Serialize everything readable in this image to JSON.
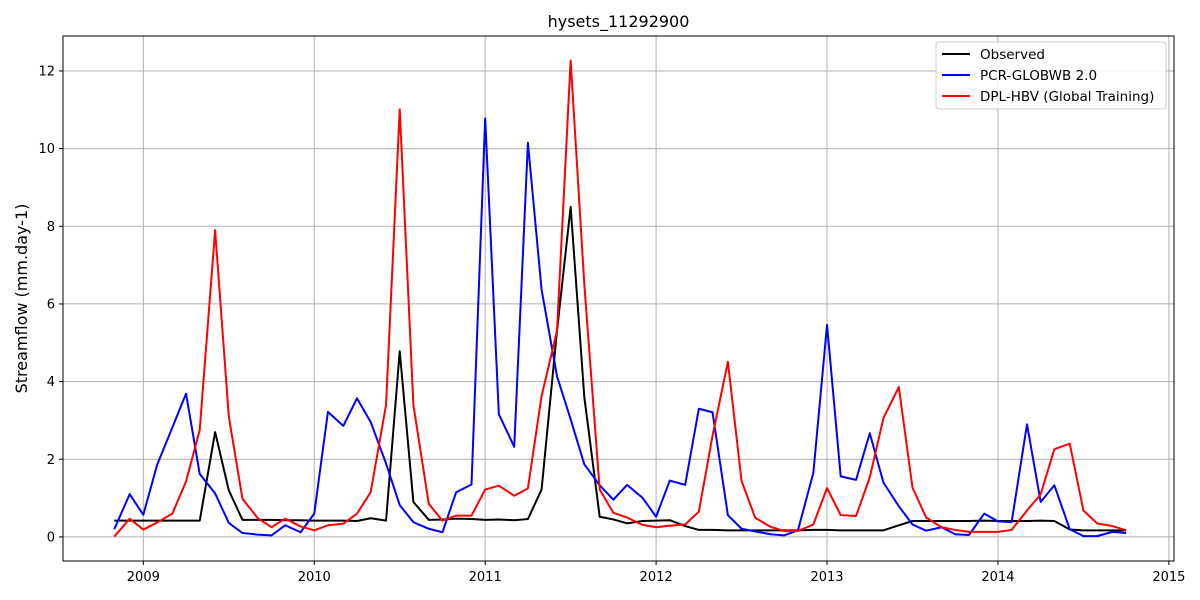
{
  "chart_data": {
    "type": "line",
    "title": "hysets_11292900",
    "xlabel": "",
    "ylabel": "Streamflow (mm.day-1)",
    "xlim": [
      2008.53,
      2015.03
    ],
    "ylim": [
      -0.62,
      12.9
    ],
    "xticks": [
      2009,
      2010,
      2011,
      2012,
      2013,
      2014,
      2015
    ],
    "yticks": [
      0,
      2,
      4,
      6,
      8,
      10,
      12
    ],
    "grid": true,
    "legend_position": "top-right",
    "x": [
      2008.83,
      2008.92,
      2009.0,
      2009.08,
      2009.17,
      2009.25,
      2009.33,
      2009.42,
      2009.5,
      2009.58,
      2009.67,
      2009.75,
      2009.83,
      2009.92,
      2010.0,
      2010.08,
      2010.17,
      2010.25,
      2010.33,
      2010.42,
      2010.5,
      2010.58,
      2010.67,
      2010.75,
      2010.83,
      2010.92,
      2011.0,
      2011.08,
      2011.17,
      2011.25,
      2011.33,
      2011.42,
      2011.5,
      2011.58,
      2011.67,
      2011.75,
      2011.83,
      2011.92,
      2012.0,
      2012.08,
      2012.17,
      2012.25,
      2012.33,
      2012.42,
      2012.5,
      2012.58,
      2012.67,
      2012.75,
      2012.83,
      2012.92,
      2013.0,
      2013.08,
      2013.17,
      2013.25,
      2013.33,
      2013.42,
      2013.5,
      2013.58,
      2013.67,
      2013.75,
      2013.83,
      2013.92,
      2014.0,
      2014.08,
      2014.17,
      2014.25,
      2014.33,
      2014.42,
      2014.5,
      2014.58,
      2014.67,
      2014.75
    ],
    "series": [
      {
        "name": "Observed",
        "color": "#000000",
        "values": [
          0.42,
          0.42,
          0.42,
          0.42,
          0.42,
          0.42,
          0.42,
          2.7,
          1.2,
          0.44,
          0.44,
          0.44,
          0.43,
          0.43,
          0.42,
          0.42,
          0.42,
          0.41,
          0.48,
          0.42,
          4.78,
          0.9,
          0.44,
          0.45,
          0.47,
          0.46,
          0.44,
          0.45,
          0.43,
          0.46,
          1.22,
          5.3,
          8.5,
          3.6,
          0.52,
          0.45,
          0.35,
          0.41,
          0.42,
          0.43,
          0.28,
          0.18,
          0.18,
          0.17,
          0.17,
          0.17,
          0.17,
          0.17,
          0.17,
          0.18,
          0.18,
          0.17,
          0.17,
          0.17,
          0.17,
          0.3,
          0.41,
          0.41,
          0.41,
          0.41,
          0.41,
          0.42,
          0.41,
          0.41,
          0.41,
          0.42,
          0.41,
          0.19,
          0.17,
          0.17,
          0.17,
          0.17
        ]
      },
      {
        "name": "PCR-GLOBWB 2.0",
        "color": "#0000ff",
        "values": [
          0.2,
          1.1,
          0.57,
          1.85,
          2.82,
          3.69,
          1.62,
          1.12,
          0.36,
          0.1,
          0.06,
          0.04,
          0.3,
          0.12,
          0.6,
          3.22,
          2.86,
          3.57,
          2.96,
          1.89,
          0.82,
          0.38,
          0.21,
          0.12,
          1.15,
          1.35,
          10.78,
          3.16,
          2.32,
          10.15,
          6.37,
          4.14,
          3.03,
          1.87,
          1.33,
          0.96,
          1.34,
          1.01,
          0.52,
          1.45,
          1.34,
          3.3,
          3.21,
          0.56,
          0.21,
          0.14,
          0.07,
          0.04,
          0.17,
          1.65,
          5.46,
          1.56,
          1.47,
          2.67,
          1.4,
          0.79,
          0.32,
          0.16,
          0.25,
          0.07,
          0.05,
          0.6,
          0.4,
          0.38,
          2.9,
          0.9,
          1.33,
          0.2,
          0.02,
          0.02,
          0.13,
          0.1
        ]
      },
      {
        "name": "DPL-HBV (Global Training)",
        "color": "#ff0000",
        "values": [
          0.01,
          0.47,
          0.19,
          0.37,
          0.6,
          1.43,
          2.76,
          7.9,
          3.1,
          0.98,
          0.48,
          0.25,
          0.47,
          0.27,
          0.17,
          0.3,
          0.34,
          0.6,
          1.15,
          3.4,
          11.01,
          3.4,
          0.85,
          0.42,
          0.55,
          0.55,
          1.22,
          1.32,
          1.06,
          1.25,
          3.63,
          5.3,
          12.27,
          6.5,
          1.22,
          0.62,
          0.5,
          0.31,
          0.25,
          0.29,
          0.32,
          0.65,
          2.6,
          4.51,
          1.44,
          0.49,
          0.26,
          0.15,
          0.15,
          0.32,
          1.26,
          0.56,
          0.54,
          1.53,
          3.06,
          3.86,
          1.27,
          0.5,
          0.25,
          0.18,
          0.13,
          0.13,
          0.13,
          0.18,
          0.68,
          1.1,
          2.26,
          2.4,
          0.68,
          0.35,
          0.28,
          0.17
        ]
      }
    ]
  }
}
